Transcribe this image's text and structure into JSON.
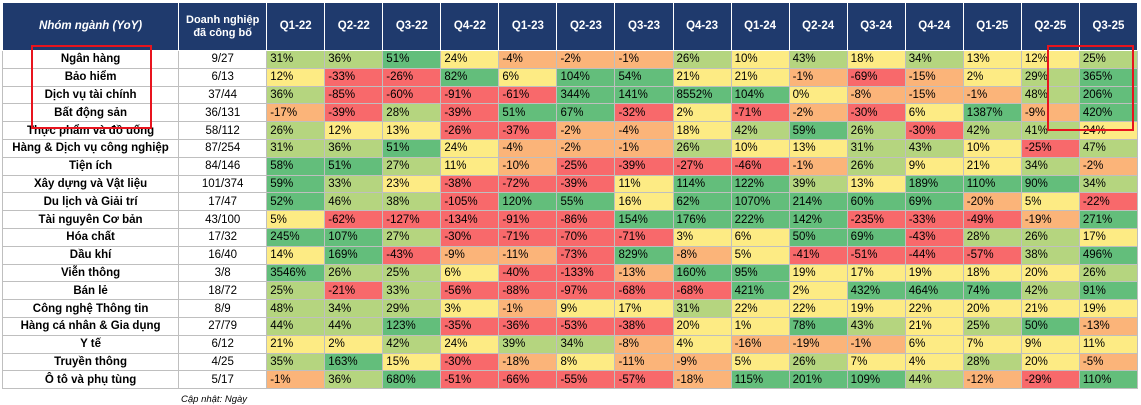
{
  "header": {
    "sector": "Nhóm ngành (YoY)",
    "count": "Doanh nghiệp đã công bố",
    "quarters": [
      "Q1-22",
      "Q2-22",
      "Q3-22",
      "Q4-22",
      "Q1-23",
      "Q2-23",
      "Q3-23",
      "Q4-23",
      "Q1-24",
      "Q2-24",
      "Q3-24",
      "Q4-24",
      "Q1-25",
      "Q2-25",
      "Q3-25"
    ]
  },
  "rows": [
    {
      "name": "Ngân hàng",
      "count": "9/27",
      "values": [
        "31%",
        "36%",
        "51%",
        "24%",
        "-4%",
        "-2%",
        "-1%",
        "26%",
        "10%",
        "43%",
        "18%",
        "34%",
        "13%",
        "12%",
        "25%"
      ]
    },
    {
      "name": "Bảo hiểm",
      "count": "6/13",
      "values": [
        "12%",
        "-33%",
        "-26%",
        "82%",
        "6%",
        "104%",
        "54%",
        "21%",
        "21%",
        "-1%",
        "-69%",
        "-15%",
        "2%",
        "29%",
        "365%"
      ]
    },
    {
      "name": "Dịch vụ tài chính",
      "count": "37/44",
      "values": [
        "36%",
        "-85%",
        "-60%",
        "-91%",
        "-61%",
        "344%",
        "141%",
        "8552%",
        "104%",
        "0%",
        "-8%",
        "-15%",
        "-1%",
        "48%",
        "206%"
      ]
    },
    {
      "name": "Bất động sản",
      "count": "36/131",
      "values": [
        "-17%",
        "-39%",
        "28%",
        "-39%",
        "51%",
        "67%",
        "-32%",
        "2%",
        "-71%",
        "-2%",
        "-30%",
        "6%",
        "1387%",
        "-9%",
        "420%"
      ]
    },
    {
      "name": "Thực phẩm và đồ uống",
      "count": "58/112",
      "values": [
        "26%",
        "12%",
        "13%",
        "-26%",
        "-37%",
        "-2%",
        "-4%",
        "18%",
        "42%",
        "59%",
        "26%",
        "-30%",
        "42%",
        "41%",
        "24%"
      ]
    },
    {
      "name": "Hàng & Dịch vụ công nghiệp",
      "count": "87/254",
      "values": [
        "31%",
        "36%",
        "51%",
        "24%",
        "-4%",
        "-2%",
        "-1%",
        "26%",
        "10%",
        "13%",
        "31%",
        "43%",
        "10%",
        "-25%",
        "47%"
      ]
    },
    {
      "name": "Tiện ích",
      "count": "84/146",
      "values": [
        "58%",
        "51%",
        "27%",
        "11%",
        "-10%",
        "-25%",
        "-39%",
        "-27%",
        "-46%",
        "-1%",
        "26%",
        "9%",
        "21%",
        "34%",
        "-2%"
      ]
    },
    {
      "name": "Xây dựng và Vật liệu",
      "count": "101/374",
      "values": [
        "59%",
        "33%",
        "23%",
        "-38%",
        "-72%",
        "-39%",
        "11%",
        "114%",
        "122%",
        "39%",
        "13%",
        "189%",
        "110%",
        "90%",
        "34%"
      ]
    },
    {
      "name": "Du lịch và Giải trí",
      "count": "17/47",
      "values": [
        "52%",
        "46%",
        "38%",
        "-105%",
        "120%",
        "55%",
        "16%",
        "62%",
        "1070%",
        "214%",
        "60%",
        "69%",
        "-20%",
        "5%",
        "-22%"
      ]
    },
    {
      "name": "Tài nguyên Cơ bản",
      "count": "43/100",
      "values": [
        "5%",
        "-62%",
        "-127%",
        "-134%",
        "-91%",
        "-86%",
        "154%",
        "176%",
        "222%",
        "142%",
        "-235%",
        "-33%",
        "-49%",
        "-19%",
        "271%"
      ]
    },
    {
      "name": "Hóa chất",
      "count": "17/32",
      "values": [
        "245%",
        "107%",
        "27%",
        "-30%",
        "-71%",
        "-70%",
        "-71%",
        "3%",
        "6%",
        "50%",
        "69%",
        "-43%",
        "28%",
        "26%",
        "17%"
      ]
    },
    {
      "name": "Dầu khí",
      "count": "16/40",
      "values": [
        "14%",
        "169%",
        "-43%",
        "-9%",
        "-11%",
        "-73%",
        "829%",
        "-8%",
        "5%",
        "-41%",
        "-51%",
        "-44%",
        "-57%",
        "38%",
        "496%"
      ]
    },
    {
      "name": "Viễn thông",
      "count": "3/8",
      "values": [
        "3546%",
        "26%",
        "25%",
        "6%",
        "-40%",
        "-133%",
        "-13%",
        "160%",
        "95%",
        "19%",
        "17%",
        "19%",
        "18%",
        "20%",
        "26%"
      ]
    },
    {
      "name": "Bán lẻ",
      "count": "18/72",
      "values": [
        "25%",
        "-21%",
        "33%",
        "-56%",
        "-88%",
        "-97%",
        "-68%",
        "-68%",
        "421%",
        "2%",
        "432%",
        "464%",
        "74%",
        "42%",
        "91%"
      ]
    },
    {
      "name": "Công nghệ Thông tin",
      "count": "8/9",
      "values": [
        "48%",
        "34%",
        "29%",
        "3%",
        "-1%",
        "9%",
        "17%",
        "31%",
        "22%",
        "22%",
        "19%",
        "22%",
        "20%",
        "21%",
        "19%"
      ]
    },
    {
      "name": "Hàng cá nhân & Gia dụng",
      "count": "27/79",
      "values": [
        "44%",
        "44%",
        "123%",
        "-35%",
        "-36%",
        "-53%",
        "-38%",
        "20%",
        "1%",
        "78%",
        "43%",
        "21%",
        "25%",
        "50%",
        "-13%"
      ]
    },
    {
      "name": "Y tế",
      "count": "6/12",
      "values": [
        "21%",
        "2%",
        "42%",
        "24%",
        "39%",
        "34%",
        "-8%",
        "4%",
        "-16%",
        "-19%",
        "-1%",
        "6%",
        "7%",
        "9%",
        "11%"
      ]
    },
    {
      "name": "Truyền thông",
      "count": "4/25",
      "values": [
        "35%",
        "163%",
        "15%",
        "-30%",
        "-18%",
        "8%",
        "-11%",
        "-9%",
        "5%",
        "26%",
        "7%",
        "4%",
        "28%",
        "20%",
        "-5%"
      ]
    },
    {
      "name": "Ô tô và phụ tùng",
      "count": "5/17",
      "values": [
        "-1%",
        "36%",
        "680%",
        "-51%",
        "-66%",
        "-55%",
        "-57%",
        "-18%",
        "115%",
        "201%",
        "109%",
        "44%",
        "-12%",
        "-29%",
        "110%"
      ]
    }
  ],
  "footer_note": "Cập nhật: Ngày",
  "colors": {
    "green": "#63be7b",
    "light_green": "#b5d57f",
    "yellow": "#fdeb84",
    "orange": "#fbb479",
    "red": "#f8696b",
    "header": "#1f3a6d",
    "highlight": "#e8141e"
  }
}
